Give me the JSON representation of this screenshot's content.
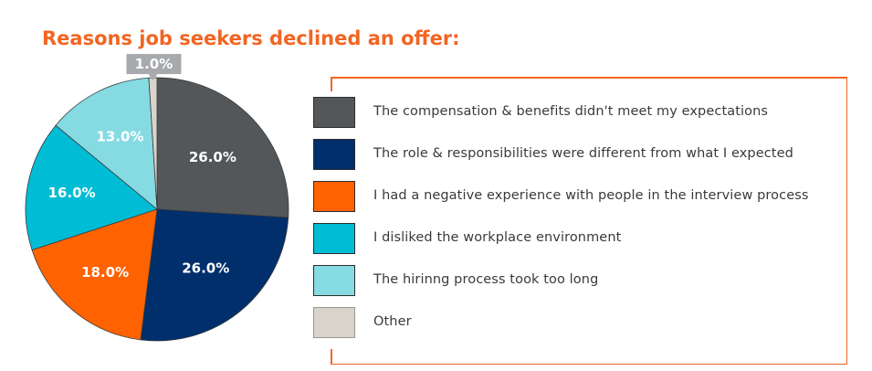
{
  "chart_data": {
    "type": "pie",
    "title": "Reasons job seekers declined an offer:",
    "slices": [
      {
        "label": "The compensation & benefits didn't meet my expectations",
        "value": 26.0,
        "display": "26.0%",
        "color": "#54575a"
      },
      {
        "label": "The role & responsibilities were different from what I expected",
        "value": 26.0,
        "display": "26.0%",
        "color": "#002f6c"
      },
      {
        "label": "I had a negative experience with people in the interview process",
        "value": 18.0,
        "display": "18.0%",
        "color": "#ff6200"
      },
      {
        "label": "I disliked the workplace environment",
        "value": 16.0,
        "display": "16.0%",
        "color": "#00bcd4"
      },
      {
        "label": "The hirinng process took too long",
        "value": 13.0,
        "display": "13.0%",
        "color": "#86dbe3"
      },
      {
        "label": "Other",
        "value": 1.0,
        "display": "1.0%",
        "color": "#d8d4cc"
      }
    ],
    "legend_position": "right",
    "callout_color": "#a7a9ac",
    "accent_color": "#f26522"
  }
}
